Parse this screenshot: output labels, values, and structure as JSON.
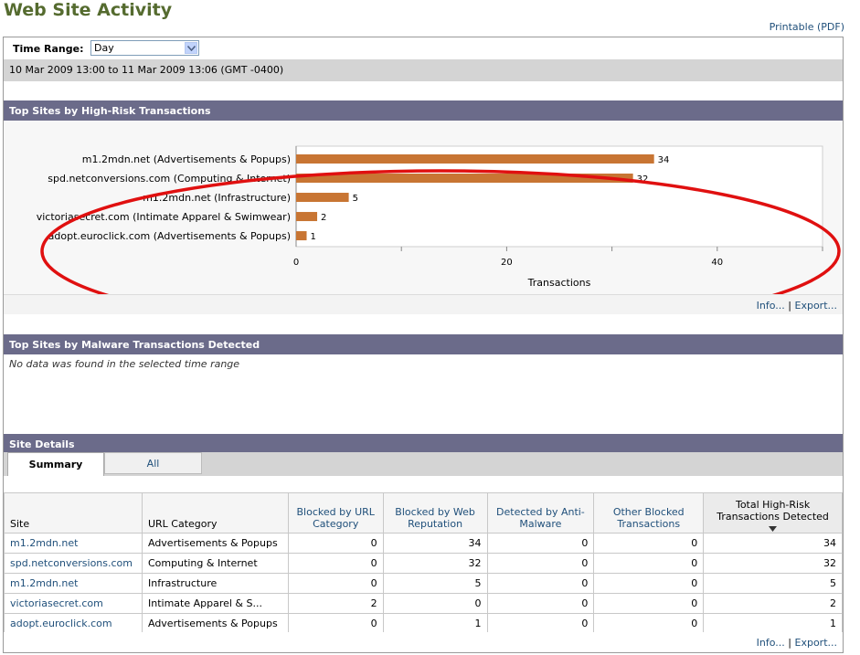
{
  "title": "Web Site Activity",
  "printable_link": "Printable (PDF)",
  "time_range": {
    "label": "Time Range:",
    "value": "Day"
  },
  "date_range": "10 Mar 2009 13:00 to 11 Mar 2009 13:06 (GMT -0400)",
  "panels": {
    "high_risk": {
      "title": "Top Sites by High-Risk Transactions"
    },
    "malware": {
      "title": "Top Sites by Malware Transactions Detected",
      "no_data": "No data was found in the selected time range"
    },
    "site_details": {
      "title": "Site Details"
    }
  },
  "footer_links": {
    "info": "Info...",
    "separator": "|",
    "export": "Export..."
  },
  "chart_data": {
    "type": "bar",
    "orientation": "horizontal",
    "categories": [
      "m1.2mdn.net (Advertisements & Popups)",
      "spd.netconversions.com (Computing & Internet)",
      "m1.2mdn.net (Infrastructure)",
      "victoriasecret.com (Intimate Apparel & Swimwear)",
      "adopt.euroclick.com (Advertisements & Popups)"
    ],
    "values": [
      34,
      32,
      5,
      2,
      1
    ],
    "xlabel": "Transactions",
    "xlim": [
      0,
      50
    ],
    "ticks": [
      0,
      20,
      40
    ],
    "bar_color": "#c87533"
  },
  "tabs": [
    {
      "label": "Summary",
      "active": true
    },
    {
      "label": "All",
      "active": false
    }
  ],
  "table": {
    "headers": [
      "Site",
      "URL Category",
      "Blocked by URL Category",
      "Blocked by Web Reputation",
      "Detected by Anti-Malware",
      "Other Blocked Transactions",
      "Total High-Risk Transactions Detected"
    ],
    "rows": [
      [
        "m1.2mdn.net",
        "Advertisements & Popups",
        "0",
        "34",
        "0",
        "0",
        "34"
      ],
      [
        "spd.netconversions.com",
        "Computing & Internet",
        "0",
        "32",
        "0",
        "0",
        "32"
      ],
      [
        "m1.2mdn.net",
        "Infrastructure",
        "0",
        "5",
        "0",
        "0",
        "5"
      ],
      [
        "victoriasecret.com",
        "Intimate Apparel & S...",
        "2",
        "0",
        "0",
        "0",
        "2"
      ],
      [
        "adopt.euroclick.com",
        "Advertisements & Popups",
        "0",
        "1",
        "0",
        "0",
        "1"
      ]
    ],
    "sort_icon": "sort-descending-icon"
  },
  "doc_number": "226637",
  "colors": {
    "title": "#556b2f",
    "panel_header": "#6b6b8a",
    "link": "#1f4f7a",
    "annotation_ellipse": "#e01010"
  }
}
